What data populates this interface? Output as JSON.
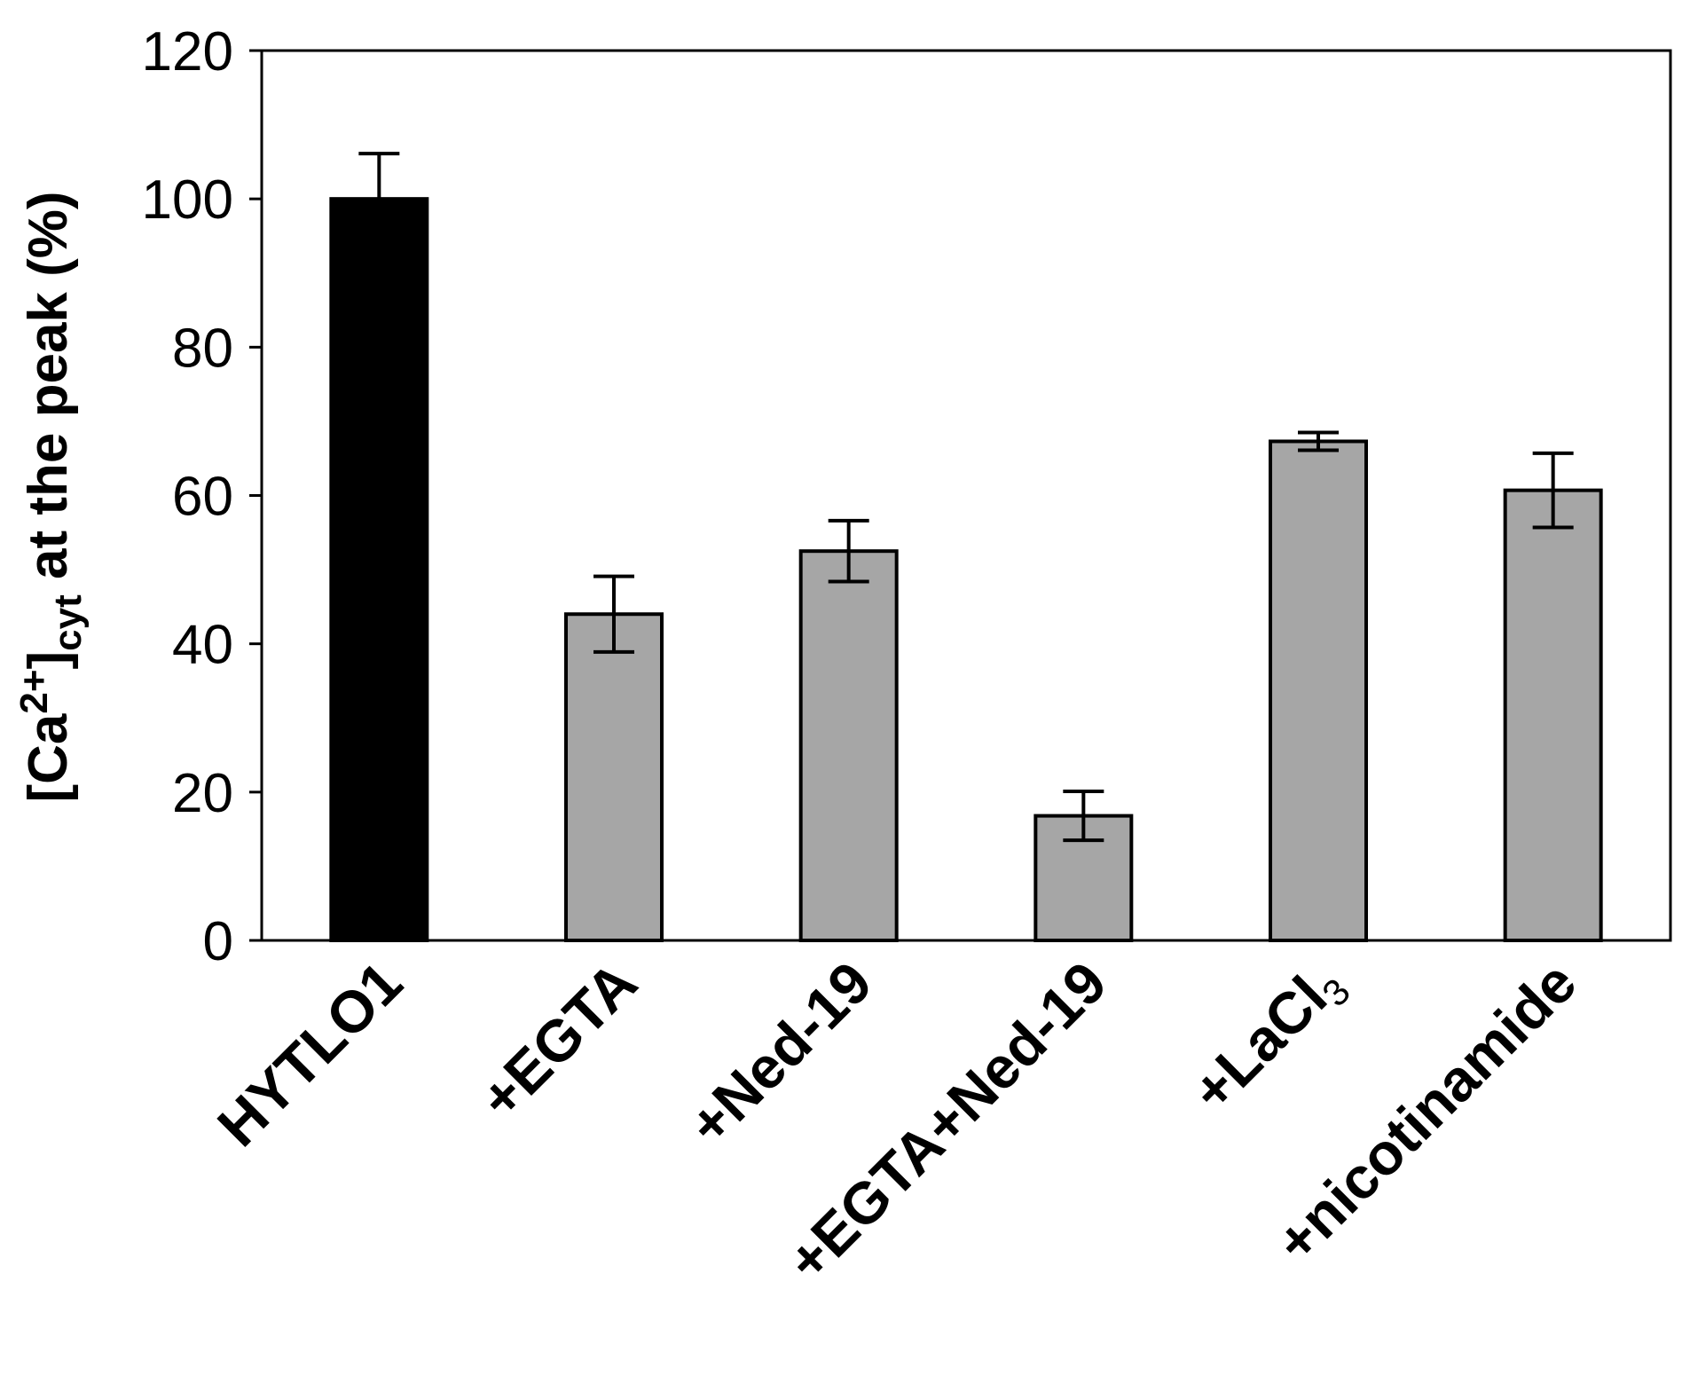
{
  "chart_data": {
    "type": "bar",
    "categories": [
      "HYTLO1",
      "+EGTA",
      "+Ned-19",
      "+EGTA+Ned-19",
      "+LaCl3",
      "+nicotinamide"
    ],
    "category_labels": [
      {
        "text": "HYTLO1",
        "sub": ""
      },
      {
        "text": "+EGTA",
        "sub": ""
      },
      {
        "text": "+Ned-19",
        "sub": ""
      },
      {
        "text": "+EGTA+Ned-19",
        "sub": ""
      },
      {
        "text": "+LaCl",
        "sub": "3"
      },
      {
        "text": "+nicotinamide",
        "sub": ""
      }
    ],
    "values": [
      100,
      44,
      52.5,
      16.8,
      67.3,
      60.7
    ],
    "errors": [
      6.1,
      5.1,
      4.1,
      3.3,
      1.2,
      5.0
    ],
    "bar_colors": [
      "#000000",
      "#a6a6a6",
      "#a6a6a6",
      "#a6a6a6",
      "#a6a6a6",
      "#a6a6a6"
    ],
    "ylim": [
      0,
      120
    ],
    "yticks": [
      0,
      20,
      40,
      60,
      80,
      100,
      120
    ],
    "ylabel": {
      "open": "[Ca",
      "sup": "2+",
      "close": "]",
      "sub": "cyt",
      "rest": " at the peak (%)"
    },
    "xlabel": "",
    "grid": false,
    "legend": "none"
  }
}
